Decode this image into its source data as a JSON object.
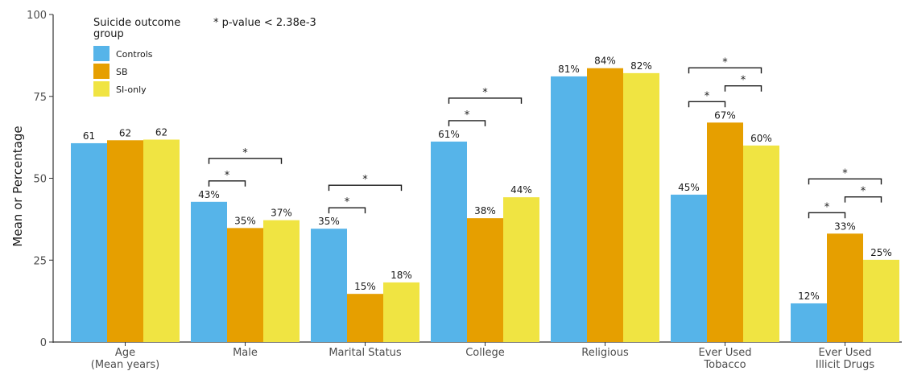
{
  "chart_data": {
    "type": "bar",
    "title": "",
    "xlabel": "",
    "ylabel": "Mean or Percentage",
    "ylim": [
      0,
      100
    ],
    "yticks": [
      0,
      25,
      50,
      75,
      100
    ],
    "grid": false,
    "legend_position": "top-left",
    "legend_title": "Suicide outcome group",
    "annotation": "* p-value < 2.38e-3",
    "significance_marker": "*",
    "categories": [
      "Age\n(Mean years)",
      "Male",
      "Marital Status",
      "College",
      "Religious",
      "Ever Used\nTobacco",
      "Ever Used\nIllicit Drugs"
    ],
    "series": [
      {
        "name": "Controls",
        "color": "#56B4E9",
        "values": [
          60.7,
          42.8,
          34.6,
          61.2,
          81.1,
          45.0,
          11.8
        ],
        "labels": [
          "61",
          "43%",
          "35%",
          "61%",
          "81%",
          "45%",
          "12%"
        ]
      },
      {
        "name": "SB",
        "color": "#E69F00",
        "values": [
          61.6,
          34.8,
          14.7,
          37.8,
          83.6,
          67.0,
          33.1
        ],
        "labels": [
          "62",
          "35%",
          "15%",
          "38%",
          "84%",
          "67%",
          "33%"
        ]
      },
      {
        "name": "SI-only",
        "color": "#F0E442",
        "values": [
          61.8,
          37.2,
          18.2,
          44.2,
          82.1,
          60.0,
          25.1
        ],
        "labels": [
          "62",
          "37%",
          "18%",
          "44%",
          "82%",
          "60%",
          "25%"
        ]
      }
    ],
    "significance": [
      {
        "category": 1,
        "pairs": [
          [
            0,
            1
          ],
          [
            0,
            2
          ]
        ]
      },
      {
        "category": 2,
        "pairs": [
          [
            0,
            1
          ],
          [
            0,
            2
          ]
        ]
      },
      {
        "category": 3,
        "pairs": [
          [
            0,
            1
          ],
          [
            0,
            2
          ]
        ]
      },
      {
        "category": 5,
        "pairs": [
          [
            0,
            1
          ],
          [
            1,
            2
          ],
          [
            0,
            2
          ]
        ]
      },
      {
        "category": 6,
        "pairs": [
          [
            0,
            1
          ],
          [
            1,
            2
          ],
          [
            0,
            2
          ]
        ]
      }
    ]
  }
}
